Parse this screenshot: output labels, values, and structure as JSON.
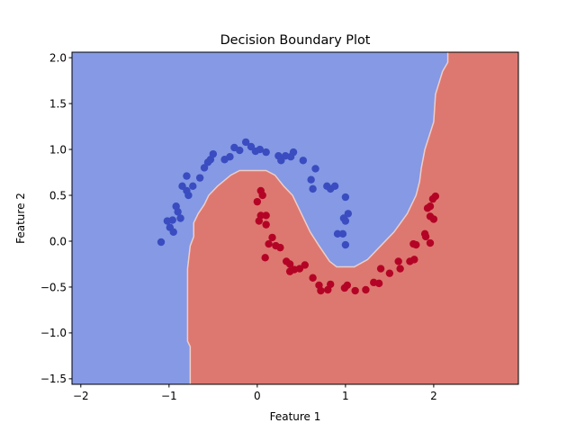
{
  "chart_data": {
    "type": "scatter",
    "title": "Decision Boundary Plot",
    "xlabel": "Feature 1",
    "ylabel": "Feature 2",
    "xlim": [
      -2.1,
      2.96
    ],
    "ylim": [
      -1.56,
      2.06
    ],
    "xticks": [
      -2,
      -1,
      0,
      1,
      2
    ],
    "xtick_labels": [
      "−2",
      "−1",
      "0",
      "1",
      "2"
    ],
    "yticks": [
      -1.5,
      -1.0,
      -0.5,
      0.0,
      0.5,
      1.0,
      1.5,
      2.0
    ],
    "ytick_labels": [
      "−1.5",
      "−1.0",
      "−0.5",
      "0.0",
      "0.5",
      "1.0",
      "1.5",
      "2.0"
    ],
    "grid": false,
    "regions": [
      {
        "class": 0,
        "color": "#8599e5"
      },
      {
        "class": 1,
        "color": "#dd7870"
      }
    ],
    "boundary_color": "#f0cdc4",
    "decision_boundary": [
      [
        -0.76,
        -1.56
      ],
      [
        -0.76,
        -1.15
      ],
      [
        -0.79,
        -1.09
      ],
      [
        -0.79,
        -0.3
      ],
      [
        -0.76,
        -0.05
      ],
      [
        -0.72,
        0.05
      ],
      [
        -0.72,
        0.2
      ],
      [
        -0.67,
        0.3
      ],
      [
        -0.6,
        0.4
      ],
      [
        -0.55,
        0.5
      ],
      [
        -0.45,
        0.6
      ],
      [
        -0.3,
        0.72
      ],
      [
        -0.2,
        0.77
      ],
      [
        0.1,
        0.77
      ],
      [
        0.2,
        0.72
      ],
      [
        0.3,
        0.6
      ],
      [
        0.4,
        0.5
      ],
      [
        0.5,
        0.3
      ],
      [
        0.6,
        0.1
      ],
      [
        0.7,
        -0.05
      ],
      [
        0.82,
        -0.22
      ],
      [
        0.9,
        -0.28
      ],
      [
        1.1,
        -0.28
      ],
      [
        1.25,
        -0.2
      ],
      [
        1.4,
        -0.05
      ],
      [
        1.55,
        0.1
      ],
      [
        1.7,
        0.3
      ],
      [
        1.8,
        0.5
      ],
      [
        1.84,
        0.65
      ],
      [
        1.86,
        0.8
      ],
      [
        1.9,
        1.0
      ],
      [
        2.0,
        1.3
      ],
      [
        2.02,
        1.6
      ],
      [
        2.1,
        1.85
      ],
      [
        2.16,
        1.95
      ],
      [
        2.16,
        2.06
      ]
    ],
    "series": [
      {
        "color": "#3a4cc0",
        "points": [
          [
            -1.09,
            -0.01
          ],
          [
            -1.02,
            0.22
          ],
          [
            -0.96,
            0.23
          ],
          [
            -0.99,
            0.15
          ],
          [
            -0.95,
            0.1
          ],
          [
            -0.92,
            0.38
          ],
          [
            -0.9,
            0.32
          ],
          [
            -0.87,
            0.25
          ],
          [
            -0.85,
            0.6
          ],
          [
            -0.8,
            0.55
          ],
          [
            -0.78,
            0.5
          ],
          [
            -0.8,
            0.71
          ],
          [
            -0.73,
            0.6
          ],
          [
            -0.65,
            0.69
          ],
          [
            -0.6,
            0.8
          ],
          [
            -0.56,
            0.86
          ],
          [
            -0.53,
            0.89
          ],
          [
            -0.5,
            0.95
          ],
          [
            -0.37,
            0.89
          ],
          [
            -0.31,
            0.92
          ],
          [
            -0.26,
            1.02
          ],
          [
            -0.2,
            0.99
          ],
          [
            -0.13,
            1.08
          ],
          [
            -0.07,
            1.03
          ],
          [
            -0.02,
            0.98
          ],
          [
            0.03,
            1.0
          ],
          [
            0.1,
            0.97
          ],
          [
            0.24,
            0.93
          ],
          [
            0.27,
            0.88
          ],
          [
            0.32,
            0.93
          ],
          [
            0.38,
            0.92
          ],
          [
            0.41,
            0.97
          ],
          [
            0.52,
            0.88
          ],
          [
            0.61,
            0.67
          ],
          [
            0.63,
            0.57
          ],
          [
            0.66,
            0.79
          ],
          [
            0.79,
            0.6
          ],
          [
            0.83,
            0.57
          ],
          [
            0.88,
            0.6
          ],
          [
            0.91,
            0.08
          ],
          [
            0.97,
            0.08
          ],
          [
            1.0,
            0.48
          ],
          [
            0.98,
            0.25
          ],
          [
            1.0,
            0.22
          ],
          [
            1.03,
            0.3
          ],
          [
            1.0,
            -0.04
          ]
        ]
      },
      {
        "color": "#b40426",
        "points": [
          [
            0.0,
            0.43
          ],
          [
            0.04,
            0.55
          ],
          [
            0.06,
            0.5
          ],
          [
            0.04,
            0.28
          ],
          [
            0.1,
            0.28
          ],
          [
            0.02,
            0.22
          ],
          [
            0.1,
            0.18
          ],
          [
            0.17,
            0.04
          ],
          [
            0.13,
            -0.03
          ],
          [
            0.21,
            -0.05
          ],
          [
            0.09,
            -0.18
          ],
          [
            0.26,
            -0.07
          ],
          [
            0.33,
            -0.22
          ],
          [
            0.37,
            -0.25
          ],
          [
            0.37,
            -0.33
          ],
          [
            0.42,
            -0.31
          ],
          [
            0.48,
            -0.3
          ],
          [
            0.54,
            -0.26
          ],
          [
            0.63,
            -0.4
          ],
          [
            0.7,
            -0.48
          ],
          [
            0.72,
            -0.54
          ],
          [
            0.8,
            -0.53
          ],
          [
            0.83,
            -0.47
          ],
          [
            0.99,
            -0.51
          ],
          [
            1.02,
            -0.48
          ],
          [
            1.11,
            -0.54
          ],
          [
            1.23,
            -0.53
          ],
          [
            1.32,
            -0.45
          ],
          [
            1.38,
            -0.46
          ],
          [
            1.4,
            -0.3
          ],
          [
            1.5,
            -0.35
          ],
          [
            1.6,
            -0.22
          ],
          [
            1.62,
            -0.3
          ],
          [
            1.73,
            -0.22
          ],
          [
            1.78,
            -0.2
          ],
          [
            1.77,
            -0.03
          ],
          [
            1.8,
            -0.04
          ],
          [
            1.9,
            0.08
          ],
          [
            1.91,
            0.05
          ],
          [
            1.96,
            -0.02
          ],
          [
            1.93,
            0.36
          ],
          [
            1.96,
            0.38
          ],
          [
            1.99,
            0.46
          ],
          [
            2.02,
            0.49
          ],
          [
            1.96,
            0.27
          ],
          [
            2.0,
            0.24
          ]
        ]
      }
    ]
  }
}
